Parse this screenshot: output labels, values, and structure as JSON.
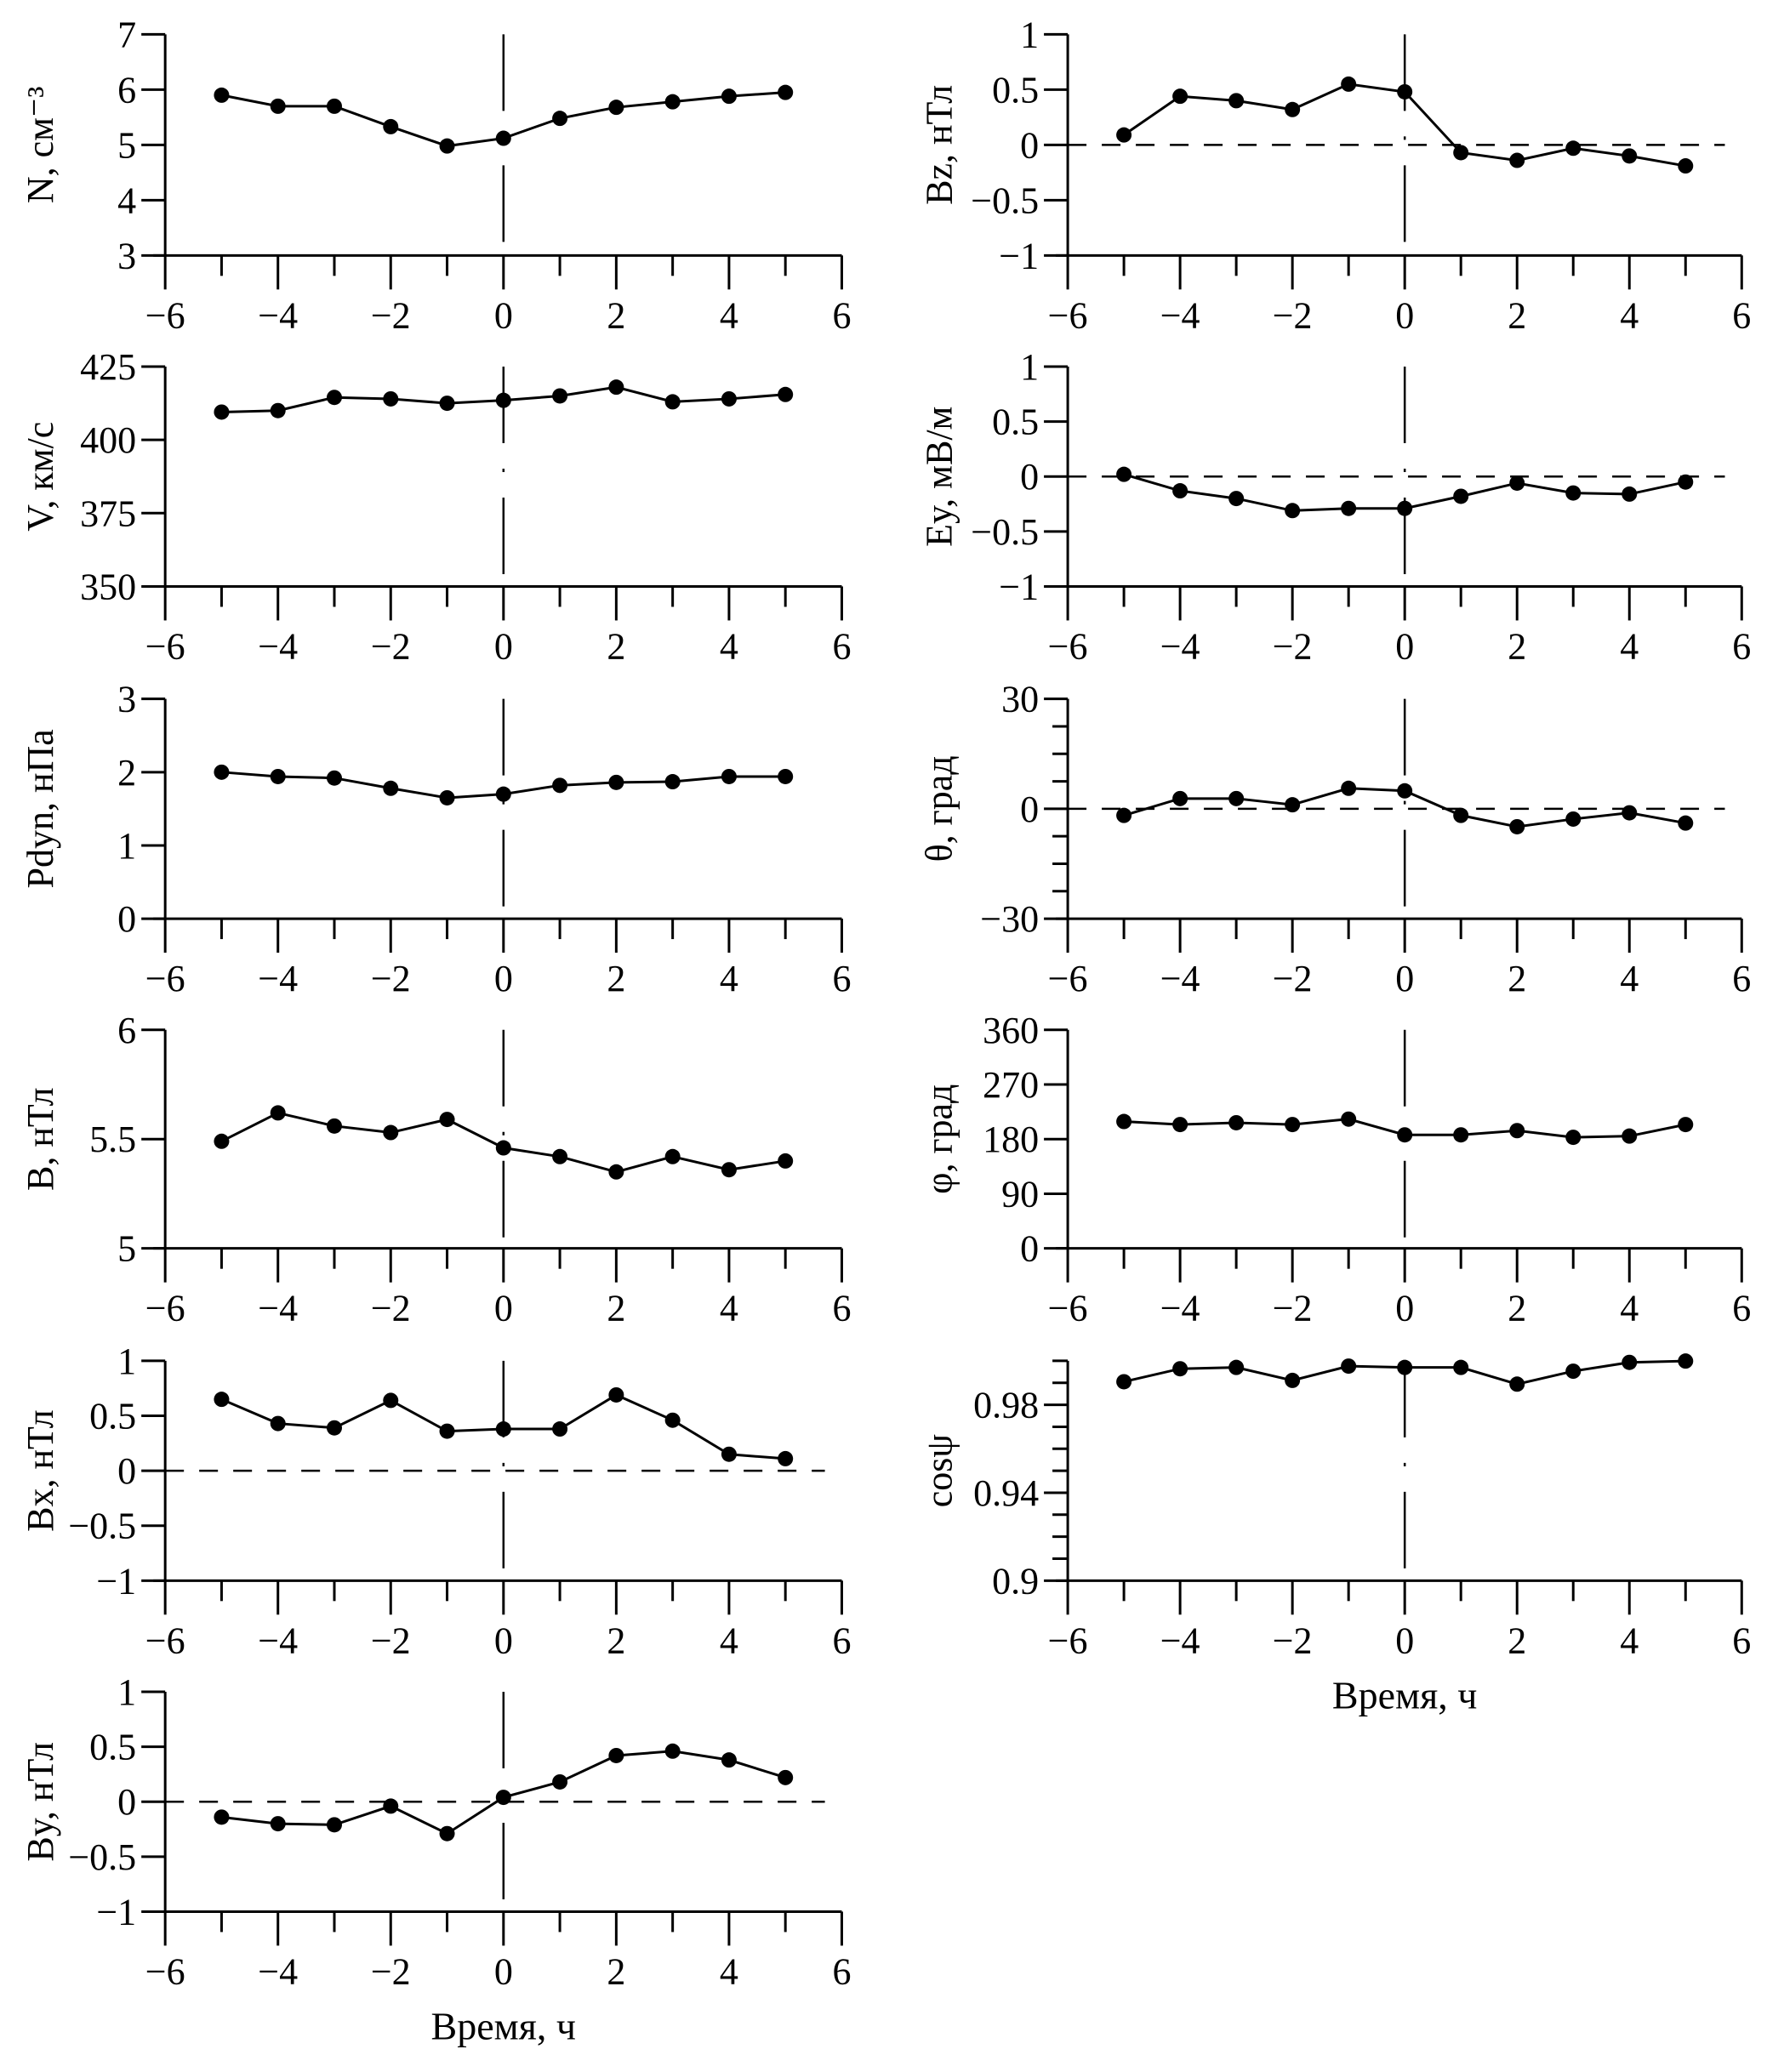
{
  "chart_data": [
    {
      "type": "line",
      "column": "left",
      "ylabel": "N, см⁻³",
      "ylim": [
        3,
        7
      ],
      "yticks": [
        3,
        4,
        5,
        6,
        7
      ],
      "yminor": [],
      "zero_line": false,
      "x": [
        -5,
        -4,
        -3,
        -2,
        -1,
        0,
        1,
        2,
        3,
        4,
        5
      ],
      "values": [
        5.9,
        5.7,
        5.7,
        5.33,
        4.98,
        5.12,
        5.48,
        5.68,
        5.78,
        5.88,
        5.95
      ]
    },
    {
      "type": "line",
      "column": "left",
      "ylabel": "V, км/с",
      "ylim": [
        350,
        425
      ],
      "yticks": [
        350,
        375,
        400,
        425
      ],
      "yminor": [],
      "zero_line": false,
      "x": [
        -5,
        -4,
        -3,
        -2,
        -1,
        0,
        1,
        2,
        3,
        4,
        5
      ],
      "values": [
        409.5,
        410,
        414.5,
        414,
        412.5,
        413.5,
        415,
        418,
        413,
        414,
        415.5
      ]
    },
    {
      "type": "line",
      "column": "left",
      "ylabel": "Pdyn, нПа",
      "ylim": [
        0,
        3
      ],
      "yticks": [
        0,
        1,
        2,
        3
      ],
      "yminor": [],
      "zero_line": false,
      "x": [
        -5,
        -4,
        -3,
        -2,
        -1,
        0,
        1,
        2,
        3,
        4,
        5
      ],
      "values": [
        2.0,
        1.94,
        1.92,
        1.78,
        1.65,
        1.7,
        1.82,
        1.86,
        1.87,
        1.94,
        1.94
      ]
    },
    {
      "type": "line",
      "column": "left",
      "ylabel": "B, нТл",
      "ylim": [
        5,
        6
      ],
      "yticks": [
        5,
        5.5,
        6
      ],
      "yminor": [],
      "zero_line": false,
      "x": [
        -5,
        -4,
        -3,
        -2,
        -1,
        0,
        1,
        2,
        3,
        4,
        5
      ],
      "values": [
        5.49,
        5.62,
        5.56,
        5.53,
        5.59,
        5.46,
        5.42,
        5.35,
        5.42,
        5.36,
        5.4
      ]
    },
    {
      "type": "line",
      "column": "left",
      "ylabel": "Bx, нТл",
      "ylim": [
        -1,
        1
      ],
      "yticks": [
        -1,
        -0.5,
        0,
        0.5,
        1
      ],
      "yminor": [],
      "zero_line": true,
      "x": [
        -5,
        -4,
        -3,
        -2,
        -1,
        0,
        1,
        2,
        3,
        4,
        5
      ],
      "values": [
        0.65,
        0.43,
        0.39,
        0.64,
        0.36,
        0.38,
        0.38,
        0.69,
        0.46,
        0.15,
        0.11
      ]
    },
    {
      "type": "line",
      "column": "left",
      "ylabel": "By, нТл",
      "ylim": [
        -1,
        1
      ],
      "yticks": [
        -1,
        -0.5,
        0,
        0.5,
        1
      ],
      "yminor": [],
      "zero_line": true,
      "xlabel": "Время, ч",
      "x": [
        -5,
        -4,
        -3,
        -2,
        -1,
        0,
        1,
        2,
        3,
        4,
        5
      ],
      "values": [
        -0.14,
        -0.2,
        -0.21,
        -0.04,
        -0.29,
        0.04,
        0.18,
        0.42,
        0.46,
        0.38,
        0.22
      ]
    },
    {
      "type": "line",
      "column": "right",
      "ylabel": "Bz, нТл",
      "ylim": [
        -1,
        1
      ],
      "yticks": [
        -1,
        -0.5,
        0,
        0.5,
        1
      ],
      "yminor": [],
      "zero_line": true,
      "x": [
        -5,
        -4,
        -3,
        -2,
        -1,
        0,
        1,
        2,
        3,
        4,
        5
      ],
      "values": [
        0.09,
        0.44,
        0.4,
        0.32,
        0.55,
        0.48,
        -0.07,
        -0.14,
        -0.03,
        -0.1,
        -0.19
      ]
    },
    {
      "type": "line",
      "column": "right",
      "ylabel": "Ey, мВ/м",
      "ylim": [
        -1,
        1
      ],
      "yticks": [
        -1,
        -0.5,
        0,
        0.5,
        1
      ],
      "yminor": [],
      "zero_line": true,
      "x": [
        -5,
        -4,
        -3,
        -2,
        -1,
        0,
        1,
        2,
        3,
        4,
        5
      ],
      "values": [
        0.02,
        -0.13,
        -0.2,
        -0.31,
        -0.29,
        -0.29,
        -0.18,
        -0.06,
        -0.15,
        -0.16,
        -0.05
      ]
    },
    {
      "type": "line",
      "column": "right",
      "ylabel": "θ, град",
      "ylim": [
        -30,
        30
      ],
      "yticks": [
        -30,
        0,
        30
      ],
      "yminor": [
        -22.5,
        -15,
        -7.5,
        7.5,
        15,
        22.5
      ],
      "zero_line": true,
      "x": [
        -5,
        -4,
        -3,
        -2,
        -1,
        0,
        1,
        2,
        3,
        4,
        5
      ],
      "values": [
        -1.8,
        2.8,
        2.8,
        1.1,
        5.6,
        4.9,
        -1.8,
        -4.9,
        -2.8,
        -1.1,
        -3.9
      ]
    },
    {
      "type": "line",
      "column": "right",
      "ylabel": "φ, град",
      "ylim": [
        0,
        360
      ],
      "yticks": [
        0,
        90,
        180,
        270,
        360
      ],
      "yminor": [],
      "zero_line": false,
      "x": [
        -5,
        -4,
        -3,
        -2,
        -1,
        0,
        1,
        2,
        3,
        4,
        5
      ],
      "values": [
        209,
        204,
        207,
        204,
        213,
        187,
        187,
        194,
        183,
        185,
        204
      ]
    },
    {
      "type": "line",
      "column": "right",
      "ylabel": "cosψ",
      "ylim": [
        0.9,
        1.0
      ],
      "yticks": [
        0.9,
        0.94,
        0.98
      ],
      "yminor": [
        0.91,
        0.92,
        0.93,
        0.95,
        0.96,
        0.97,
        0.99,
        1.0
      ],
      "zero_line": false,
      "xlabel": "Время, ч",
      "x": [
        -5,
        -4,
        -3,
        -2,
        -1,
        0,
        1,
        2,
        3,
        4,
        5
      ],
      "values": [
        0.9905,
        0.9964,
        0.997,
        0.9911,
        0.9976,
        0.997,
        0.997,
        0.9894,
        0.9953,
        0.9993,
        0.9999
      ]
    }
  ],
  "xaxis": {
    "xlim": [
      -6,
      6
    ],
    "xticks": [
      -6,
      -4,
      -2,
      0,
      2,
      4,
      6
    ],
    "xminor": [
      -5,
      -3,
      -1,
      1,
      3,
      5
    ]
  }
}
